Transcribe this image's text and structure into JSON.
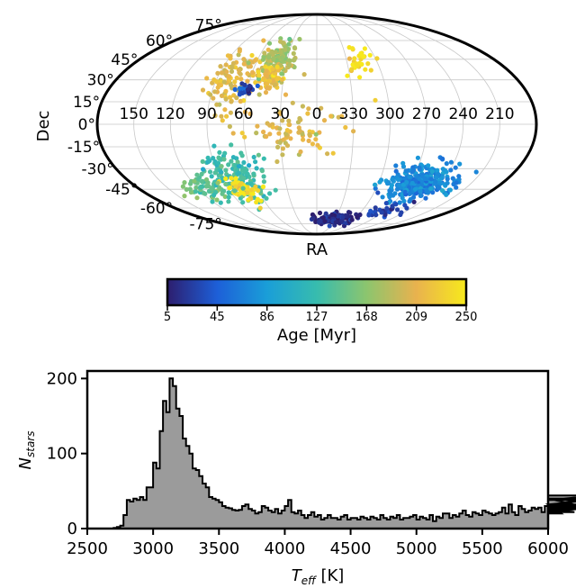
{
  "chart_data": [
    {
      "type": "scatter",
      "projection": "mollweide",
      "xlabel": "RA",
      "ylabel": "Dec",
      "ra_tick_labels": [
        "150",
        "120",
        "90",
        "60",
        "30",
        "0",
        "330",
        "300",
        "270",
        "240",
        "210"
      ],
      "dec_tick_labels": [
        "75°",
        "60°",
        "45°",
        "30°",
        "15°",
        "0°",
        "-15°",
        "-30°",
        "-45°",
        "-60°",
        "-75°"
      ],
      "grid": true,
      "colorbar": {
        "label": "Age [Myr]",
        "range": [
          5,
          250
        ],
        "tick_labels": [
          "5",
          "45",
          "86",
          "127",
          "168",
          "209",
          "250"
        ],
        "colormap": "viridis-like",
        "colors": [
          "#2d1e6e",
          "#1d5fd8",
          "#1a9ed8",
          "#37bcae",
          "#8cc56e",
          "#e9b24e",
          "#f7e91c"
        ]
      },
      "groups": [
        {
          "ra": 75,
          "dec": 30,
          "ra_spread": 20,
          "dec_spread": 20,
          "age": 209,
          "n": 110
        },
        {
          "ra": 40,
          "dec": 45,
          "ra_spread": 14,
          "dec_spread": 12,
          "age": 180,
          "n": 140
        },
        {
          "ra": 40,
          "dec": 32,
          "ra_spread": 10,
          "dec_spread": 8,
          "age": 220,
          "n": 60
        },
        {
          "ra": 62,
          "dec": 24,
          "ra_spread": 6,
          "dec_spread": 3,
          "age": 40,
          "n": 25
        },
        {
          "ra": 58,
          "dec": 24,
          "ra_spread": 2,
          "dec_spread": 2,
          "age": 12,
          "n": 6
        },
        {
          "ra": 315,
          "dec": 45,
          "ra_spread": 12,
          "dec_spread": 12,
          "age": 240,
          "n": 30
        },
        {
          "ra": 20,
          "dec": -5,
          "ra_spread": 40,
          "dec_spread": 15,
          "age": 205,
          "n": 80
        },
        {
          "ra": 75,
          "dec": -35,
          "ra_spread": 22,
          "dec_spread": 15,
          "age": 130,
          "n": 170
        },
        {
          "ra": 75,
          "dec": -45,
          "ra_spread": 12,
          "dec_spread": 8,
          "age": 240,
          "n": 60
        },
        {
          "ra": 115,
          "dec": -45,
          "ra_spread": 18,
          "dec_spread": 8,
          "age": 150,
          "n": 60
        },
        {
          "ra": 260,
          "dec": -40,
          "ra_spread": 25,
          "dec_spread": 10,
          "age": 70,
          "n": 320
        },
        {
          "ra": 335,
          "dec": -70,
          "ra_spread": 35,
          "dec_spread": 5,
          "age": 12,
          "n": 90
        },
        {
          "ra": 270,
          "dec": -62,
          "ra_spread": 20,
          "dec_spread": 6,
          "age": 30,
          "n": 30
        }
      ]
    },
    {
      "type": "histogram",
      "xlabel": "T_eff [K]",
      "ylabel": "N_stars",
      "xlim": [
        2500,
        6000
      ],
      "ylim": [
        0,
        210
      ],
      "xticks": [
        2500,
        3000,
        3500,
        4000,
        4500,
        5000,
        5500,
        6000
      ],
      "yticks": [
        0,
        100,
        200
      ],
      "bin_width": 25,
      "bin_start": 2700,
      "counts": [
        1,
        2,
        4,
        18,
        38,
        36,
        40,
        38,
        42,
        38,
        55,
        55,
        88,
        80,
        130,
        170,
        155,
        200,
        190,
        160,
        150,
        120,
        110,
        100,
        80,
        78,
        70,
        60,
        55,
        42,
        40,
        38,
        35,
        30,
        28,
        27,
        25,
        24,
        25,
        30,
        32,
        26,
        24,
        20,
        22,
        30,
        28,
        24,
        22,
        26,
        20,
        24,
        30,
        38,
        22,
        20,
        24,
        18,
        14,
        18,
        22,
        16,
        18,
        12,
        14,
        18,
        14,
        14,
        12,
        16,
        18,
        12,
        14,
        14,
        12,
        16,
        14,
        12,
        16,
        14,
        12,
        18,
        14,
        12,
        16,
        14,
        18,
        12,
        14,
        14,
        16,
        18,
        12,
        16,
        14,
        12,
        18,
        10,
        16,
        14,
        20,
        20,
        14,
        18,
        16,
        20,
        24,
        18,
        16,
        22,
        20,
        18,
        24,
        22,
        20,
        18,
        20,
        22,
        28,
        20,
        32,
        22,
        18,
        30,
        26,
        22,
        24,
        28,
        26,
        28,
        22,
        30,
        22,
        24,
        28,
        32,
        20,
        30,
        24,
        28,
        22,
        26,
        30,
        40,
        28,
        32,
        38,
        44
      ]
    }
  ]
}
